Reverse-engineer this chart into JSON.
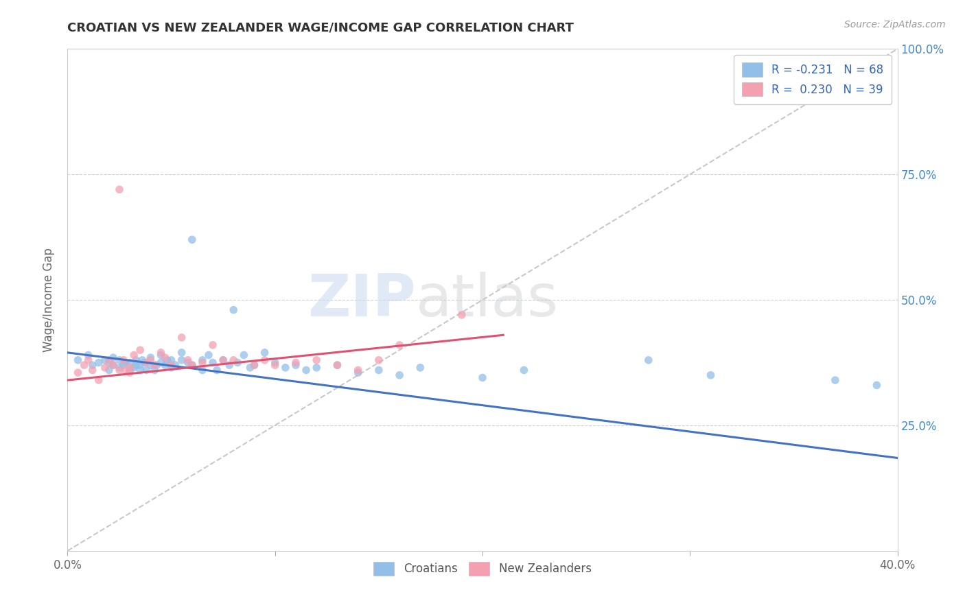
{
  "title": "CROATIAN VS NEW ZEALANDER WAGE/INCOME GAP CORRELATION CHART",
  "source": "Source: ZipAtlas.com",
  "ylabel": "Wage/Income Gap",
  "xlim": [
    0.0,
    0.4
  ],
  "ylim": [
    0.0,
    1.0
  ],
  "blue_color": "#92bfe8",
  "pink_color": "#f4a0b0",
  "trend_blue": "#4472c4",
  "trend_pink": "#e05070",
  "watermark_zip": "ZIP",
  "watermark_atlas": "atlas",
  "legend1_label": "R = -0.231   N = 68",
  "legend2_label": "R =  0.230   N = 39",
  "croatians_x": [
    0.005,
    0.01,
    0.012,
    0.015,
    0.018,
    0.02,
    0.02,
    0.022,
    0.022,
    0.025,
    0.025,
    0.027,
    0.028,
    0.03,
    0.03,
    0.032,
    0.033,
    0.033,
    0.035,
    0.035,
    0.036,
    0.037,
    0.038,
    0.04,
    0.04,
    0.042,
    0.043,
    0.045,
    0.045,
    0.047,
    0.048,
    0.05,
    0.05,
    0.052,
    0.055,
    0.055,
    0.058,
    0.06,
    0.06,
    0.065,
    0.065,
    0.068,
    0.07,
    0.072,
    0.075,
    0.078,
    0.08,
    0.082,
    0.085,
    0.088,
    0.09,
    0.095,
    0.1,
    0.105,
    0.11,
    0.115,
    0.12,
    0.13,
    0.14,
    0.15,
    0.16,
    0.17,
    0.2,
    0.22,
    0.28,
    0.31,
    0.37,
    0.39
  ],
  "croatians_y": [
    0.38,
    0.39,
    0.37,
    0.375,
    0.38,
    0.36,
    0.375,
    0.37,
    0.385,
    0.365,
    0.38,
    0.37,
    0.375,
    0.36,
    0.375,
    0.365,
    0.37,
    0.38,
    0.36,
    0.37,
    0.38,
    0.375,
    0.36,
    0.37,
    0.385,
    0.36,
    0.37,
    0.375,
    0.39,
    0.37,
    0.38,
    0.365,
    0.38,
    0.37,
    0.38,
    0.395,
    0.375,
    0.37,
    0.62,
    0.38,
    0.36,
    0.39,
    0.375,
    0.36,
    0.38,
    0.37,
    0.48,
    0.375,
    0.39,
    0.365,
    0.37,
    0.395,
    0.375,
    0.365,
    0.37,
    0.36,
    0.365,
    0.37,
    0.355,
    0.36,
    0.35,
    0.365,
    0.345,
    0.36,
    0.38,
    0.35,
    0.34,
    0.33
  ],
  "nz_x": [
    0.005,
    0.008,
    0.01,
    0.012,
    0.015,
    0.018,
    0.02,
    0.022,
    0.025,
    0.025,
    0.027,
    0.028,
    0.03,
    0.03,
    0.032,
    0.035,
    0.038,
    0.04,
    0.042,
    0.045,
    0.047,
    0.05,
    0.055,
    0.058,
    0.06,
    0.065,
    0.07,
    0.075,
    0.08,
    0.09,
    0.095,
    0.1,
    0.11,
    0.12,
    0.13,
    0.14,
    0.15,
    0.16,
    0.19
  ],
  "nz_y": [
    0.355,
    0.37,
    0.38,
    0.36,
    0.34,
    0.365,
    0.38,
    0.37,
    0.36,
    0.72,
    0.38,
    0.36,
    0.365,
    0.355,
    0.39,
    0.4,
    0.375,
    0.38,
    0.37,
    0.395,
    0.385,
    0.37,
    0.425,
    0.38,
    0.37,
    0.375,
    0.41,
    0.38,
    0.38,
    0.37,
    0.38,
    0.37,
    0.375,
    0.38,
    0.37,
    0.36,
    0.38,
    0.41,
    0.47
  ],
  "ref_line": [
    [
      0.0,
      0.0
    ],
    [
      0.4,
      1.0
    ]
  ],
  "trend_blue_endpoints": [
    [
      0.0,
      0.395
    ],
    [
      0.4,
      0.185
    ]
  ],
  "trend_pink_endpoints": [
    [
      0.0,
      0.34
    ],
    [
      0.21,
      0.43
    ]
  ]
}
